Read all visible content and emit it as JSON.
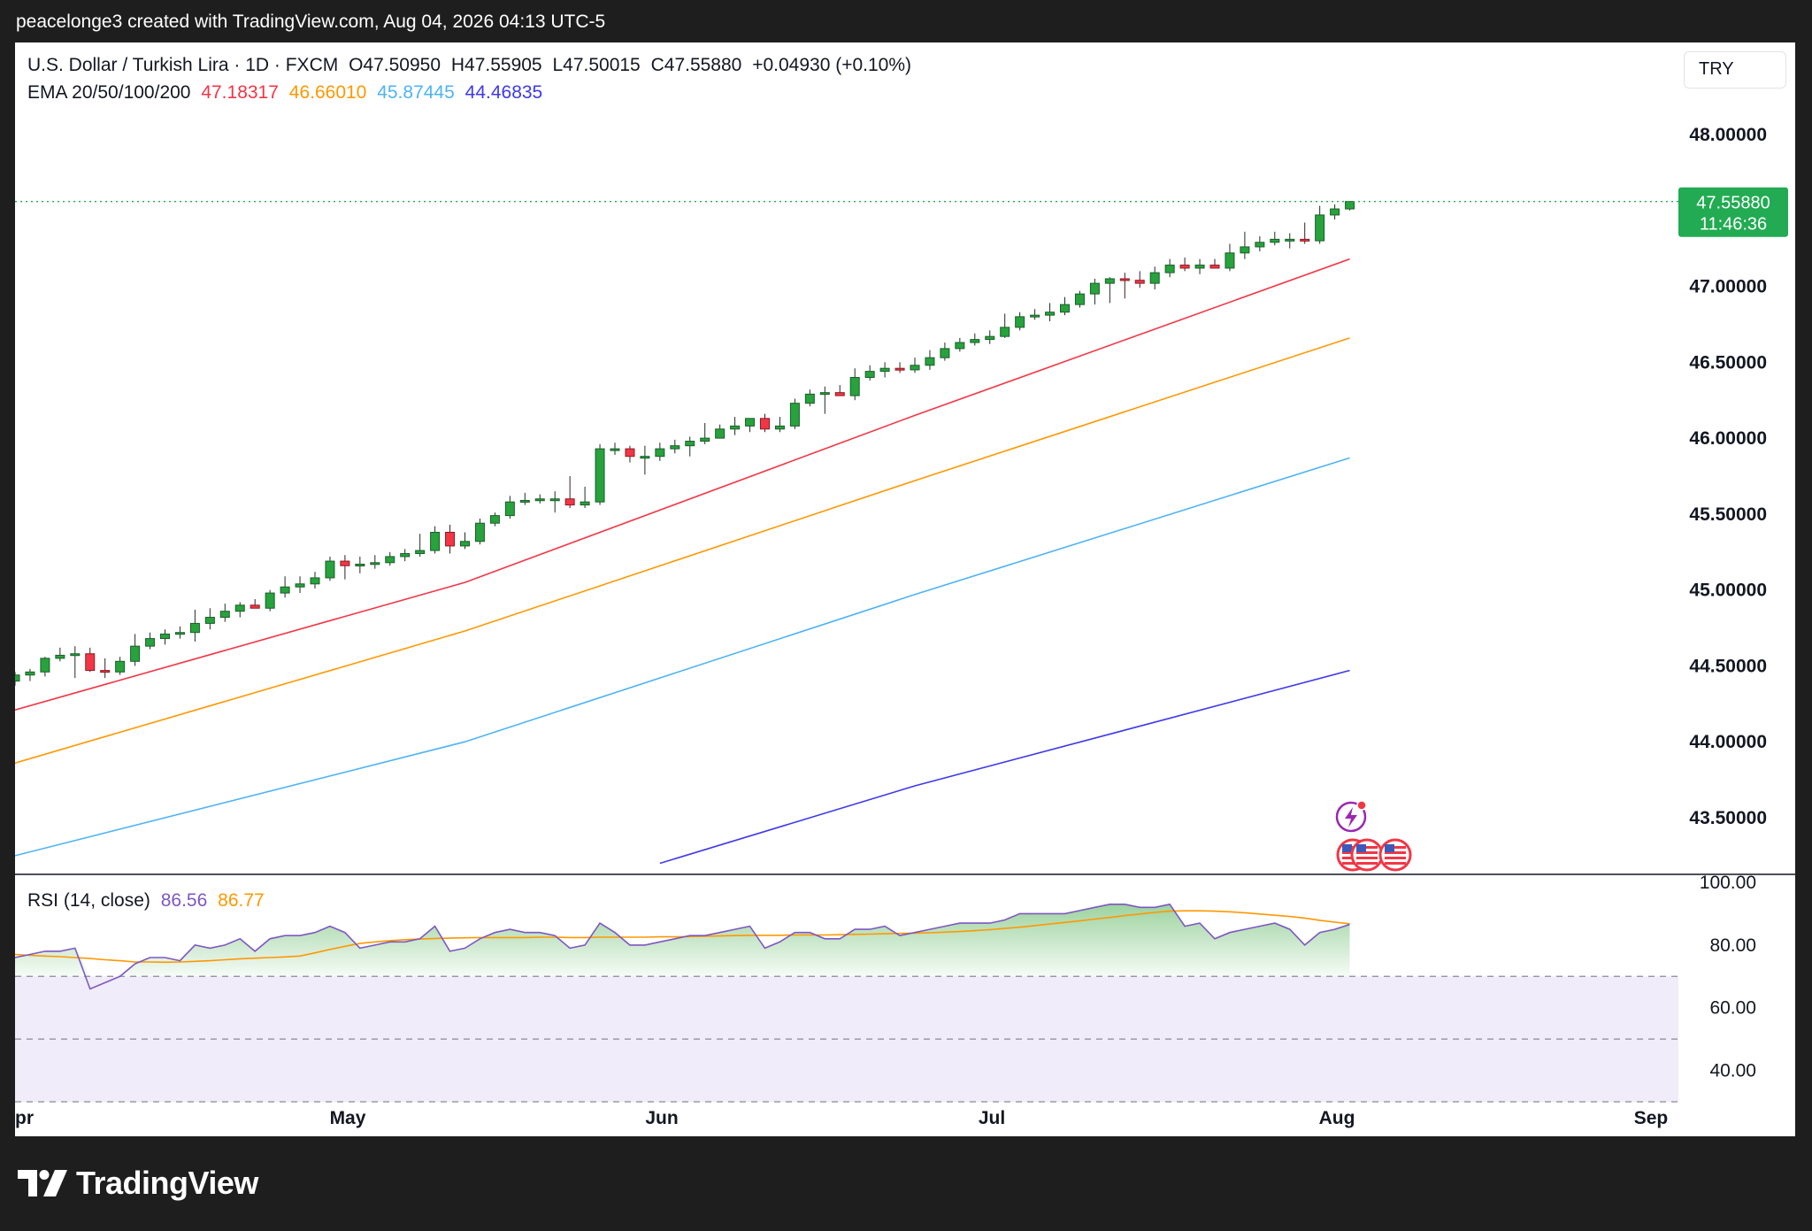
{
  "top_caption": "peacelonge3 created with TradingView.com, Aug 04, 2026 04:13 UTC-5",
  "legend": {
    "symbol": "U.S. Dollar / Turkish Lira · 1D · FXCM",
    "open": "O47.50950",
    "high": "H47.55905",
    "low": "L47.50015",
    "close": "C47.55880",
    "change": "+0.04930 (+0.10%)",
    "ema_label": "EMA 20/50/100/200",
    "ema_values": [
      "47.18317",
      "46.66010",
      "45.87445",
      "44.46835"
    ]
  },
  "currency": "TRY",
  "price_badge": {
    "price": "47.55880",
    "countdown": "11:46:36"
  },
  "rsi_legend": {
    "label": "RSI (14, close)",
    "rsi": "86.56",
    "ma": "86.77"
  },
  "brand": "TradingView",
  "colors": {
    "up": "#089981",
    "up_fill": "#27a23c",
    "down": "#f23645",
    "ema20": "#f23645",
    "ema50": "#ff9800",
    "ema100": "#4fb3f5",
    "ema200": "#3e39ea",
    "rsi": "#7e57c2",
    "rsi_ma": "#ff9800",
    "last_price": "#22ab52"
  },
  "icons": [
    "flash-event-icon",
    "us-flag-icon"
  ],
  "chart_data": [
    {
      "type": "candlestick",
      "title": "U.S. Dollar / Turkish Lira · 1D · FXCM",
      "ylim": [
        43.2,
        48.3
      ],
      "y_ticks": [
        "48.00000",
        "47.00000",
        "46.50000",
        "46.00000",
        "45.50000",
        "45.00000",
        "44.50000",
        "44.00000",
        "43.50000"
      ],
      "x_labels": [
        "pr",
        "May",
        "Jun",
        "Jul",
        "Aug",
        "Sep"
      ],
      "dates": [
        "2026-04-01",
        "2026-04-02",
        "2026-04-03",
        "2026-04-06",
        "2026-04-07",
        "2026-04-08",
        "2026-04-09",
        "2026-04-10",
        "2026-04-13",
        "2026-04-14",
        "2026-04-15",
        "2026-04-16",
        "2026-04-17",
        "2026-04-20",
        "2026-04-21",
        "2026-04-22",
        "2026-04-23",
        "2026-04-24",
        "2026-04-27",
        "2026-04-28",
        "2026-04-29",
        "2026-04-30",
        "2026-05-01",
        "2026-05-04",
        "2026-05-05",
        "2026-05-06",
        "2026-05-07",
        "2026-05-08",
        "2026-05-11",
        "2026-05-12",
        "2026-05-13",
        "2026-05-14",
        "2026-05-15",
        "2026-05-18",
        "2026-05-19",
        "2026-05-20",
        "2026-05-21",
        "2026-05-22",
        "2026-05-25",
        "2026-05-26",
        "2026-05-27",
        "2026-05-28",
        "2026-05-29",
        "2026-06-01",
        "2026-06-02",
        "2026-06-03",
        "2026-06-04",
        "2026-06-05",
        "2026-06-08",
        "2026-06-09",
        "2026-06-10",
        "2026-06-11",
        "2026-06-12",
        "2026-06-15",
        "2026-06-16",
        "2026-06-17",
        "2026-06-18",
        "2026-06-19",
        "2026-06-22",
        "2026-06-23",
        "2026-06-24",
        "2026-06-25",
        "2026-06-26",
        "2026-06-29",
        "2026-06-30",
        "2026-07-01",
        "2026-07-02",
        "2026-07-03",
        "2026-07-06",
        "2026-07-07",
        "2026-07-08",
        "2026-07-09",
        "2026-07-10",
        "2026-07-13",
        "2026-07-14",
        "2026-07-15",
        "2026-07-16",
        "2026-07-17",
        "2026-07-20",
        "2026-07-21",
        "2026-07-22",
        "2026-07-23",
        "2026-07-24",
        "2026-07-27",
        "2026-07-28",
        "2026-07-29",
        "2026-07-30",
        "2026-07-31",
        "2026-08-03",
        "2026-08-04"
      ],
      "open": [
        44.4,
        44.44,
        44.46,
        44.55,
        44.57,
        44.58,
        44.47,
        44.46,
        44.53,
        44.63,
        44.68,
        44.71,
        44.72,
        44.78,
        44.82,
        44.86,
        44.9,
        44.88,
        44.98,
        45.02,
        45.04,
        45.08,
        45.19,
        45.16,
        45.17,
        45.18,
        45.22,
        45.24,
        45.26,
        45.38,
        45.29,
        45.32,
        45.44,
        45.49,
        45.58,
        45.59,
        45.6,
        45.6,
        45.56,
        45.58,
        45.93,
        45.93,
        45.88,
        45.88,
        45.93,
        45.95,
        45.98,
        46.0,
        46.06,
        46.08,
        46.13,
        46.06,
        46.08,
        46.23,
        46.29,
        46.3,
        46.28,
        46.4,
        46.44,
        46.46,
        46.45,
        46.48,
        46.53,
        46.59,
        46.63,
        46.65,
        46.67,
        46.73,
        46.8,
        46.81,
        46.83,
        46.88,
        46.95,
        47.02,
        47.05,
        47.04,
        47.02,
        47.09,
        47.14,
        47.12,
        47.14,
        47.12,
        47.22,
        47.26,
        47.29,
        47.31,
        47.31,
        47.3,
        47.47,
        47.51
      ],
      "high": [
        44.46,
        44.48,
        44.56,
        44.62,
        44.63,
        44.62,
        44.55,
        44.56,
        44.71,
        44.72,
        44.74,
        44.76,
        44.87,
        44.88,
        44.91,
        44.92,
        44.94,
        45.0,
        45.09,
        45.09,
        45.12,
        45.22,
        45.23,
        45.22,
        45.23,
        45.25,
        45.27,
        45.37,
        45.42,
        45.43,
        45.38,
        45.47,
        45.51,
        45.62,
        45.64,
        45.63,
        45.65,
        45.75,
        45.68,
        45.96,
        45.97,
        45.95,
        45.95,
        45.97,
        45.99,
        46.01,
        46.1,
        46.09,
        46.14,
        46.13,
        46.16,
        46.14,
        46.26,
        46.32,
        46.34,
        46.35,
        46.46,
        46.48,
        46.5,
        46.5,
        46.53,
        46.58,
        46.63,
        46.66,
        46.69,
        46.71,
        46.82,
        46.83,
        46.85,
        46.89,
        46.93,
        46.97,
        47.05,
        47.06,
        47.09,
        47.1,
        47.13,
        47.18,
        47.19,
        47.18,
        47.18,
        47.28,
        47.36,
        47.33,
        47.36,
        47.35,
        47.42,
        47.53,
        47.54,
        47.56
      ],
      "low": [
        44.37,
        44.4,
        44.43,
        44.53,
        44.42,
        44.46,
        44.42,
        44.44,
        44.5,
        44.61,
        44.64,
        44.68,
        44.66,
        44.74,
        44.79,
        44.82,
        44.88,
        44.86,
        44.95,
        44.98,
        45.01,
        45.06,
        45.07,
        45.11,
        45.14,
        45.16,
        45.19,
        45.22,
        45.24,
        45.24,
        45.27,
        45.3,
        45.42,
        45.47,
        45.56,
        45.57,
        45.51,
        45.54,
        45.54,
        45.56,
        45.89,
        45.84,
        45.76,
        45.85,
        45.9,
        45.88,
        45.96,
        46.0,
        46.02,
        46.04,
        46.04,
        46.04,
        46.06,
        46.21,
        46.16,
        46.28,
        46.25,
        46.38,
        46.4,
        46.43,
        46.43,
        46.45,
        46.51,
        46.57,
        46.61,
        46.62,
        46.66,
        46.71,
        46.78,
        46.77,
        46.81,
        46.86,
        46.88,
        46.89,
        46.92,
        46.99,
        46.98,
        47.06,
        47.1,
        47.08,
        47.12,
        47.1,
        47.18,
        47.23,
        47.27,
        47.25,
        47.28,
        47.28,
        47.44,
        47.5
      ],
      "close": [
        44.44,
        44.46,
        44.55,
        44.57,
        44.58,
        44.47,
        44.46,
        44.53,
        44.63,
        44.68,
        44.71,
        44.72,
        44.78,
        44.82,
        44.86,
        44.9,
        44.88,
        44.98,
        45.02,
        45.04,
        45.08,
        45.19,
        45.16,
        45.17,
        45.18,
        45.22,
        45.24,
        45.26,
        45.38,
        45.29,
        45.32,
        45.44,
        45.49,
        45.58,
        45.59,
        45.6,
        45.6,
        45.56,
        45.58,
        45.93,
        45.93,
        45.88,
        45.88,
        45.93,
        45.95,
        45.98,
        46.0,
        46.06,
        46.08,
        46.13,
        46.06,
        46.08,
        46.23,
        46.29,
        46.3,
        46.28,
        46.4,
        46.44,
        46.46,
        46.45,
        46.48,
        46.53,
        46.59,
        46.63,
        46.65,
        46.67,
        46.73,
        46.8,
        46.81,
        46.83,
        46.88,
        46.95,
        47.02,
        47.05,
        47.04,
        47.02,
        47.09,
        47.14,
        47.12,
        47.14,
        47.12,
        47.22,
        47.26,
        47.29,
        47.31,
        47.31,
        47.3,
        47.47,
        47.51,
        47.5588
      ],
      "series": [
        {
          "name": "EMA 20",
          "points": [
            [
              0,
              44.21
            ],
            [
              30,
              45.05
            ],
            [
              60,
              46.15
            ],
            [
              89,
              47.18
            ]
          ]
        },
        {
          "name": "EMA 50",
          "points": [
            [
              0,
              43.86
            ],
            [
              30,
              44.73
            ],
            [
              60,
              45.72
            ],
            [
              89,
              46.66
            ]
          ]
        },
        {
          "name": "EMA 100",
          "points": [
            [
              0,
              43.25
            ],
            [
              30,
              44.0
            ],
            [
              60,
              44.97
            ],
            [
              89,
              45.87
            ]
          ]
        },
        {
          "name": "EMA 200",
          "points": [
            [
              43,
              43.2
            ],
            [
              60,
              43.71
            ],
            [
              89,
              44.47
            ]
          ]
        }
      ],
      "last_price": 47.5588
    },
    {
      "type": "line",
      "title": "RSI (14, close)",
      "ylim": [
        25,
        104
      ],
      "y_ticks": [
        "100.00",
        "80.00",
        "60.00",
        "40.00"
      ],
      "bands": {
        "upper": 70,
        "middle": 50,
        "lower": 30
      },
      "series": [
        {
          "name": "RSI",
          "values": [
            76,
            77,
            78,
            78,
            79,
            66,
            68,
            70,
            74,
            76,
            76,
            75,
            80,
            79,
            80,
            82,
            78,
            82,
            83,
            83,
            84,
            86,
            84,
            79,
            80,
            81,
            81,
            82,
            86,
            78,
            79,
            82,
            84,
            85,
            84,
            84,
            83,
            79,
            80,
            87,
            84,
            80,
            80,
            81,
            82,
            83,
            83,
            84,
            85,
            86,
            79,
            81,
            84,
            84,
            82,
            82,
            85,
            85,
            86,
            83,
            84,
            85,
            86,
            87,
            87,
            87,
            88,
            90,
            90,
            90,
            90,
            91,
            92,
            93,
            93,
            92,
            92,
            93,
            86,
            87,
            82,
            84,
            85,
            86,
            87,
            85,
            80,
            84,
            85,
            86.56
          ]
        },
        {
          "name": "RSI MA",
          "values": [
            77.0,
            76.7,
            76.5,
            76.3,
            76.0,
            75.7,
            75.3,
            75.0,
            74.6,
            74.6,
            74.5,
            74.6,
            74.8,
            75.0,
            75.3,
            75.6,
            75.8,
            76.0,
            76.2,
            76.5,
            77.5,
            78.6,
            79.6,
            80.5,
            81.0,
            81.4,
            81.7,
            81.9,
            82.1,
            82.2,
            82.3,
            82.4,
            82.4,
            82.4,
            82.4,
            82.5,
            82.5,
            82.4,
            82.4,
            82.5,
            82.5,
            82.5,
            82.5,
            82.6,
            82.6,
            82.7,
            82.8,
            82.9,
            83.0,
            83.1,
            83.1,
            83.1,
            83.2,
            83.2,
            83.2,
            83.3,
            83.4,
            83.5,
            83.6,
            83.7,
            83.8,
            83.9,
            84.1,
            84.3,
            84.6,
            84.9,
            85.3,
            85.7,
            86.2,
            86.7,
            87.2,
            87.7,
            88.3,
            88.8,
            89.4,
            89.9,
            90.4,
            90.8,
            90.9,
            90.9,
            90.8,
            90.6,
            90.3,
            89.9,
            89.5,
            89.1,
            88.6,
            87.9,
            87.3,
            86.77
          ]
        }
      ]
    }
  ]
}
